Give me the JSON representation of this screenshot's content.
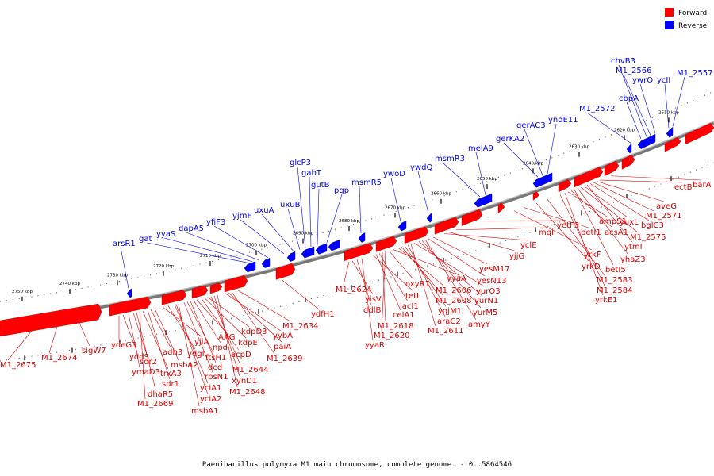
{
  "legend": [
    {
      "label": "Forward",
      "color": "#ff0000"
    },
    {
      "label": "Reverse",
      "color": "#0000ff"
    }
  ],
  "caption": "Paenibacillus polymyxa M1 main chromosome, complete genome. - 0..5864546",
  "ticks": [
    "2750 kbp",
    "2740 kbp",
    "2730 kbp",
    "2720 kbp",
    "2710 kbp",
    "2700 kbp",
    "2690 kbp",
    "2680 kbp",
    "2670 kbp",
    "2660 kbp",
    "2650 kbp",
    "2640 kbp",
    "2630 kbp",
    "2620 kbp",
    "2610 kbp"
  ],
  "reverse_genes": [
    "arsR1",
    "gat",
    "yyaS",
    "dapA5",
    "yfiF3",
    "yjmF",
    "uxuA",
    "uxuB",
    "glcP3",
    "gabT",
    "gutB",
    "pgp",
    "msmR5",
    "ywoD",
    "ywdQ",
    "msmR3",
    "melA9",
    "gerKA2",
    "gerAC3",
    "yndE11",
    "M1_2572",
    "cbpA",
    "chvB3",
    "M1_2566",
    "ywrO",
    "ycII",
    "M1_2557"
  ],
  "forward_genes": [
    "M1_2675",
    "M1_2674",
    "sigW7",
    "ydeG3",
    "yddS",
    "ymaD3",
    "sdr2",
    "dhaR5",
    "M1_2669",
    "trxA3",
    "sdr1",
    "adh3",
    "msbA2",
    "yjiA",
    "ydgI",
    "yciA1",
    "yciA2",
    "msbA1",
    "rpsN1",
    "ftsH1",
    "dcd",
    "npd",
    "AAG",
    "acpD",
    "kdpE",
    "kdpD3",
    "M1_2644",
    "xynD1",
    "M1_2648",
    "yybA",
    "paiA",
    "M1_2639",
    "M1_2634",
    "ydfH1",
    "M1_2624",
    "yisV",
    "ddlB",
    "yyaR",
    "tetL",
    "celA1",
    "lacI1",
    "M1_2618",
    "M1_2620",
    "oxyR1",
    "yyaA",
    "M1_2606",
    "M1_2608",
    "yqjM1",
    "araC2",
    "M1_2611",
    "yurO3",
    "yurN1",
    "yurM5",
    "amyY",
    "yesN13",
    "yesM17",
    "yclE",
    "yjjG",
    "mgl",
    "yetF3",
    "yrkF",
    "betI1",
    "yrkD",
    "M1_2583",
    "M1_2584",
    "yrkE1",
    "ampS1",
    "acsA1",
    "betI5",
    "yhaZ3",
    "M1_2575",
    "yuxL",
    "ytmI",
    "bglC3",
    "M1_2571",
    "aveG",
    "ectB",
    "barA"
  ]
}
